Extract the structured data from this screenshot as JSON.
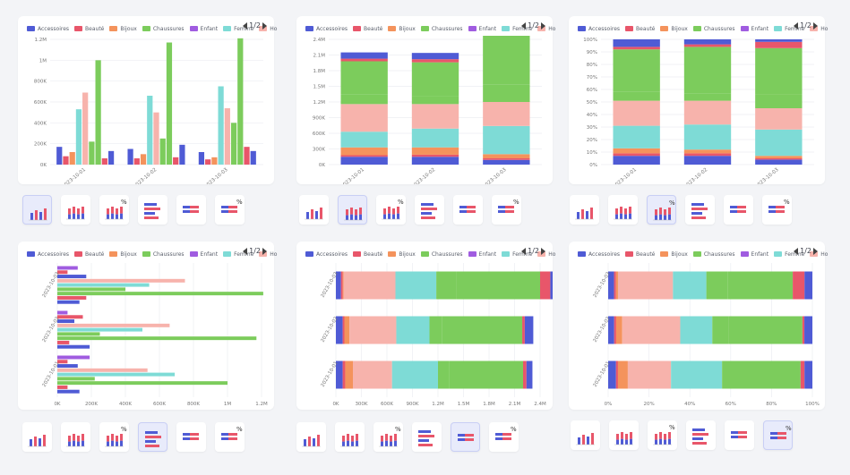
{
  "pager": {
    "label": "1/2"
  },
  "legend": [
    {
      "label": "Accessoires",
      "color": "#4f5bd5"
    },
    {
      "label": "Beauté",
      "color": "#e8566a"
    },
    {
      "label": "Bijoux",
      "color": "#f4935c"
    },
    {
      "label": "Chaussures",
      "color": "#7ccc5c"
    },
    {
      "label": "Enfant",
      "color": "#a05ce0"
    },
    {
      "label": "Femme",
      "color": "#7edbd6"
    },
    {
      "label": "Ho",
      "color": "#f7b3ac"
    }
  ],
  "thumbs": [
    {
      "name": "grouped-column-icon",
      "pct": false
    },
    {
      "name": "stacked-column-icon",
      "pct": false
    },
    {
      "name": "percent-column-icon",
      "pct": true
    },
    {
      "name": "grouped-bar-icon",
      "pct": false
    },
    {
      "name": "stacked-bar-icon",
      "pct": false
    },
    {
      "name": "percent-bar-icon",
      "pct": true
    }
  ],
  "chart_data": [
    {
      "type": "bar",
      "orientation": "vertical",
      "mode": "grouped",
      "categories": [
        "2023-10-01",
        "2023-10-02",
        "2023-10-03"
      ],
      "series": [
        {
          "name": "Accessoires",
          "values": [
            170000,
            150000,
            120000
          ]
        },
        {
          "name": "Beauté",
          "values": [
            80000,
            60000,
            50000
          ]
        },
        {
          "name": "Bijoux",
          "values": [
            120000,
            100000,
            70000
          ]
        },
        {
          "name": "Femme",
          "values": [
            530000,
            660000,
            750000
          ]
        },
        {
          "name": "Ho",
          "values": [
            690000,
            500000,
            540000
          ]
        },
        {
          "name": "Chaussures",
          "values": [
            220000,
            250000,
            400000
          ]
        },
        {
          "name": "Chaussures",
          "values": [
            1000000,
            1170000,
            1210000
          ]
        },
        {
          "name": "Beauté",
          "values": [
            60000,
            70000,
            170000
          ]
        },
        {
          "name": "Accessoires",
          "values": [
            130000,
            190000,
            130000
          ]
        }
      ],
      "ylim": [
        0,
        1200000
      ],
      "y_ticks": [
        "0K",
        "200K",
        "400K",
        "600K",
        "800K",
        "1M",
        "1.2M"
      ],
      "selected_type": 0
    },
    {
      "type": "bar",
      "orientation": "vertical",
      "mode": "stacked",
      "categories": [
        "2023-10-01",
        "2023-10-02",
        "2023-10-03"
      ],
      "series": [
        {
          "name": "Accessoires",
          "values": [
            150000,
            150000,
            90000
          ]
        },
        {
          "name": "Beauté",
          "values": [
            30000,
            40000,
            30000
          ]
        },
        {
          "name": "Bijoux",
          "values": [
            150000,
            140000,
            80000
          ]
        },
        {
          "name": "Femme",
          "values": [
            300000,
            360000,
            540000
          ]
        },
        {
          "name": "Ho",
          "values": [
            530000,
            470000,
            460000
          ]
        },
        {
          "name": "Chaussures",
          "values": [
            180000,
            150000,
            330000
          ]
        },
        {
          "name": "Chaussures",
          "values": [
            640000,
            650000,
            950000
          ]
        },
        {
          "name": "Beauté",
          "values": [
            50000,
            60000,
            170000
          ]
        },
        {
          "name": "Accessoires",
          "values": [
            120000,
            120000,
            140000
          ]
        }
      ],
      "ylim": [
        0,
        2400000
      ],
      "y_ticks": [
        "0K",
        "300K",
        "600K",
        "900K",
        "1.2M",
        "1.5M",
        "1.8M",
        "2.1M",
        "2.4M"
      ],
      "selected_type": 1
    },
    {
      "type": "bar",
      "orientation": "vertical",
      "mode": "percent",
      "categories": [
        "2023-10-01",
        "2023-10-02",
        "2023-10-03"
      ],
      "series": [
        {
          "name": "Accessoires",
          "values": [
            7,
            7,
            4
          ]
        },
        {
          "name": "Beauté",
          "values": [
            2,
            2,
            1
          ]
        },
        {
          "name": "Bijoux",
          "values": [
            4,
            3,
            2
          ]
        },
        {
          "name": "Femme",
          "values": [
            18,
            20,
            21
          ]
        },
        {
          "name": "Ho",
          "values": [
            20,
            19,
            17
          ]
        },
        {
          "name": "Chaussures",
          "values": [
            7,
            6,
            11
          ]
        },
        {
          "name": "Chaussures",
          "values": [
            34,
            37,
            37
          ]
        },
        {
          "name": "Beauté",
          "values": [
            2,
            2,
            5
          ]
        },
        {
          "name": "Accessoires",
          "values": [
            6,
            4,
            2
          ]
        }
      ],
      "ylim": [
        0,
        100
      ],
      "y_ticks": [
        "0%",
        "10%",
        "20%",
        "30%",
        "40%",
        "50%",
        "60%",
        "70%",
        "80%",
        "90%",
        "100%"
      ],
      "selected_type": 2
    },
    {
      "type": "bar",
      "orientation": "horizontal",
      "mode": "grouped",
      "categories": [
        "2023-10-03",
        "2023-10-02",
        "2023-10-01"
      ],
      "series": [
        {
          "name": "Enfant",
          "values": [
            120000,
            60000,
            190000
          ]
        },
        {
          "name": "Beauté",
          "values": [
            60000,
            150000,
            60000
          ]
        },
        {
          "name": "Accessoires",
          "values": [
            170000,
            100000,
            120000
          ]
        },
        {
          "name": "Ho",
          "values": [
            750000,
            660000,
            530000
          ]
        },
        {
          "name": "Femme",
          "values": [
            540000,
            500000,
            690000
          ]
        },
        {
          "name": "Chaussures",
          "values": [
            400000,
            250000,
            220000
          ]
        },
        {
          "name": "Chaussures",
          "values": [
            1210000,
            1170000,
            1000000
          ]
        },
        {
          "name": "Beauté",
          "values": [
            170000,
            70000,
            60000
          ]
        },
        {
          "name": "Accessoires",
          "values": [
            130000,
            190000,
            130000
          ]
        }
      ],
      "xlim": [
        0,
        1200000
      ],
      "x_ticks": [
        "0K",
        "200K",
        "400K",
        "600K",
        "800K",
        "1M",
        "1.2M"
      ],
      "selected_type": 3
    },
    {
      "type": "bar",
      "orientation": "horizontal",
      "mode": "stacked",
      "categories": [
        "2023-10-03",
        "2023-10-02",
        "2023-10-01"
      ],
      "series": [
        {
          "name": "Accessoires",
          "values": [
            60000,
            80000,
            80000
          ]
        },
        {
          "name": "Beauté",
          "values": [
            20000,
            20000,
            30000
          ]
        },
        {
          "name": "Bijoux",
          "values": [
            10000,
            60000,
            90000
          ]
        },
        {
          "name": "Ho",
          "values": [
            610000,
            550000,
            460000
          ]
        },
        {
          "name": "Femme",
          "values": [
            480000,
            390000,
            540000
          ]
        },
        {
          "name": "Chaussures",
          "values": [
            240000,
            150000,
            130000
          ]
        },
        {
          "name": "Chaussures",
          "values": [
            980000,
            940000,
            870000
          ]
        },
        {
          "name": "Beauté",
          "values": [
            120000,
            30000,
            40000
          ]
        },
        {
          "name": "Accessoires",
          "values": [
            130000,
            100000,
            70000
          ]
        }
      ],
      "xlim": [
        0,
        2400000
      ],
      "x_ticks": [
        "0K",
        "300K",
        "600K",
        "900K",
        "1.2M",
        "1.5M",
        "1.8M",
        "2.1M",
        "2.4M"
      ],
      "selected_type": 4
    },
    {
      "type": "bar",
      "orientation": "horizontal",
      "mode": "percent",
      "categories": [
        "2023-10-03",
        "2023-10-02",
        "2023-10-01"
      ],
      "series": [
        {
          "name": "Accessoires",
          "values": [
            3,
            3,
            4
          ]
        },
        {
          "name": "Beauté",
          "values": [
            1,
            1,
            1
          ]
        },
        {
          "name": "Bijoux",
          "values": [
            1,
            3,
            5
          ]
        },
        {
          "name": "Ho",
          "values": [
            28,
            29,
            22
          ]
        },
        {
          "name": "Femme",
          "values": [
            17,
            16,
            26
          ]
        },
        {
          "name": "Chaussures",
          "values": [
            11,
            8,
            7
          ]
        },
        {
          "name": "Chaussures",
          "values": [
            33,
            37,
            33
          ]
        },
        {
          "name": "Beauté",
          "values": [
            6,
            1,
            2
          ]
        },
        {
          "name": "Accessoires",
          "values": [
            4,
            4,
            4
          ]
        }
      ],
      "xlim": [
        0,
        100
      ],
      "x_ticks": [
        "0%",
        "20%",
        "40%",
        "60%",
        "80%",
        "100%"
      ],
      "selected_type": 5
    }
  ]
}
